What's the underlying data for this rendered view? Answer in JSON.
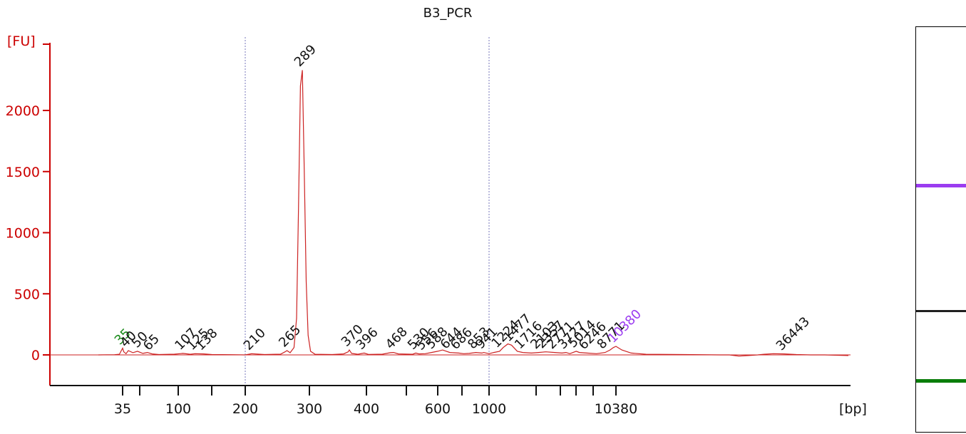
{
  "chart_data": {
    "type": "line",
    "title": "B3_PCR",
    "ylabel": "[FU]",
    "xlabel": "[bp]",
    "ylim": [
      -250,
      2550
    ],
    "y_ticks": [
      0,
      500,
      1000,
      1500,
      2000
    ],
    "x_ticks": [
      {
        "bp": 35,
        "label": "35"
      },
      {
        "bp": 50,
        "label": ""
      },
      {
        "bp": 100,
        "label": "100"
      },
      {
        "bp": 150,
        "label": ""
      },
      {
        "bp": 200,
        "label": "200"
      },
      {
        "bp": 300,
        "label": "300"
      },
      {
        "bp": 400,
        "label": "400"
      },
      {
        "bp": 500,
        "label": ""
      },
      {
        "bp": 600,
        "label": "600"
      },
      {
        "bp": 700,
        "label": ""
      },
      {
        "bp": 1000,
        "label": "1000"
      },
      {
        "bp": 2000,
        "label": ""
      },
      {
        "bp": 3000,
        "label": ""
      },
      {
        "bp": 5000,
        "label": ""
      },
      {
        "bp": 7000,
        "label": ""
      },
      {
        "bp": 10380,
        "label": "10380"
      }
    ],
    "dotted_lines_bp": [
      200,
      1000
    ],
    "trace": [
      [
        20,
        0
      ],
      [
        30,
        2
      ],
      [
        33,
        5
      ],
      [
        34,
        30
      ],
      [
        35,
        55
      ],
      [
        36,
        25
      ],
      [
        38,
        10
      ],
      [
        40,
        35
      ],
      [
        44,
        18
      ],
      [
        48,
        30
      ],
      [
        54,
        12
      ],
      [
        60,
        20
      ],
      [
        66,
        8
      ],
      [
        75,
        3
      ],
      [
        95,
        6
      ],
      [
        107,
        12
      ],
      [
        118,
        5
      ],
      [
        125,
        10
      ],
      [
        138,
        8
      ],
      [
        150,
        3
      ],
      [
        180,
        2
      ],
      [
        200,
        0
      ],
      [
        210,
        10
      ],
      [
        230,
        3
      ],
      [
        255,
        6
      ],
      [
        262,
        25
      ],
      [
        265,
        35
      ],
      [
        270,
        18
      ],
      [
        276,
        60
      ],
      [
        280,
        300
      ],
      [
        283,
        1200
      ],
      [
        286,
        2200
      ],
      [
        289,
        2330
      ],
      [
        292,
        1500
      ],
      [
        295,
        600
      ],
      [
        298,
        160
      ],
      [
        302,
        30
      ],
      [
        310,
        5
      ],
      [
        340,
        3
      ],
      [
        360,
        8
      ],
      [
        368,
        25
      ],
      [
        370,
        40
      ],
      [
        374,
        12
      ],
      [
        385,
        5
      ],
      [
        396,
        15
      ],
      [
        405,
        4
      ],
      [
        440,
        6
      ],
      [
        460,
        18
      ],
      [
        468,
        20
      ],
      [
        480,
        8
      ],
      [
        520,
        5
      ],
      [
        530,
        15
      ],
      [
        540,
        8
      ],
      [
        560,
        10
      ],
      [
        580,
        20
      ],
      [
        600,
        30
      ],
      [
        620,
        40
      ],
      [
        650,
        20
      ],
      [
        686,
        15
      ],
      [
        720,
        10
      ],
      [
        780,
        12
      ],
      [
        853,
        20
      ],
      [
        920,
        15
      ],
      [
        941,
        20
      ],
      [
        1000,
        10
      ],
      [
        1100,
        20
      ],
      [
        1224,
        30
      ],
      [
        1300,
        60
      ],
      [
        1400,
        90
      ],
      [
        1477,
        80
      ],
      [
        1600,
        30
      ],
      [
        1716,
        20
      ],
      [
        1900,
        15
      ],
      [
        2103,
        20
      ],
      [
        2400,
        25
      ],
      [
        2771,
        20
      ],
      [
        3200,
        15
      ],
      [
        3727,
        20
      ],
      [
        4200,
        10
      ],
      [
        5014,
        30
      ],
      [
        5400,
        20
      ],
      [
        6246,
        15
      ],
      [
        7500,
        10
      ],
      [
        8771,
        20
      ],
      [
        9500,
        40
      ],
      [
        10000,
        60
      ],
      [
        10380,
        70
      ],
      [
        10700,
        40
      ],
      [
        11200,
        15
      ],
      [
        12000,
        5
      ],
      [
        14000,
        3
      ],
      [
        16000,
        0
      ],
      [
        19000,
        0
      ],
      [
        22000,
        -10
      ],
      [
        25000,
        -5
      ],
      [
        28000,
        0
      ],
      [
        30000,
        5
      ],
      [
        33000,
        10
      ],
      [
        36443,
        8
      ],
      [
        39000,
        3
      ],
      [
        42000,
        0
      ],
      [
        45000,
        0
      ],
      [
        50000,
        -5
      ]
    ],
    "peak_labels": [
      {
        "bp": 35,
        "label": "35",
        "color": "green"
      },
      {
        "bp": 40,
        "label": "40",
        "color": "black"
      },
      {
        "bp": 50,
        "label": "50",
        "color": "black"
      },
      {
        "bp": 65,
        "label": "65",
        "color": "black"
      },
      {
        "bp": 107,
        "label": "107",
        "color": "black"
      },
      {
        "bp": 125,
        "label": "125",
        "color": "black"
      },
      {
        "bp": 138,
        "label": "138",
        "color": "black"
      },
      {
        "bp": 210,
        "label": "210",
        "color": "black"
      },
      {
        "bp": 265,
        "label": "265",
        "color": "black"
      },
      {
        "bp": 289,
        "label": "289",
        "color": "black"
      },
      {
        "bp": 370,
        "label": "370",
        "color": "black"
      },
      {
        "bp": 396,
        "label": "396",
        "color": "black"
      },
      {
        "bp": 468,
        "label": "468",
        "color": "black"
      },
      {
        "bp": 530,
        "label": "530",
        "color": "black"
      },
      {
        "bp": 556,
        "label": "556",
        "color": "black"
      },
      {
        "bp": 588,
        "label": "588",
        "color": "black"
      },
      {
        "bp": 644,
        "label": "644",
        "color": "black"
      },
      {
        "bp": 686,
        "label": "686",
        "color": "black"
      },
      {
        "bp": 853,
        "label": "853",
        "color": "black"
      },
      {
        "bp": 941,
        "label": "941",
        "color": "black"
      },
      {
        "bp": 1224,
        "label": "1224",
        "color": "black"
      },
      {
        "bp": 1477,
        "label": "1477",
        "color": "black"
      },
      {
        "bp": 1716,
        "label": "1716",
        "color": "black"
      },
      {
        "bp": 2103,
        "label": "2103",
        "color": "black"
      },
      {
        "bp": 2357,
        "label": "2357",
        "color": "black"
      },
      {
        "bp": 2771,
        "label": "2771",
        "color": "black"
      },
      {
        "bp": 3727,
        "label": "3727",
        "color": "black"
      },
      {
        "bp": 5014,
        "label": "5014",
        "color": "black"
      },
      {
        "bp": 6246,
        "label": "6246",
        "color": "black"
      },
      {
        "bp": 8771,
        "label": "8771",
        "color": "black"
      },
      {
        "bp": 10380,
        "label": "10380",
        "color": "purple"
      },
      {
        "bp": 36443,
        "label": "36443",
        "color": "black"
      }
    ]
  },
  "gel": {
    "bands": [
      {
        "name": "upper-marker",
        "color": "#9b3cf0"
      },
      {
        "name": "sample-band",
        "color": "#202020"
      },
      {
        "name": "lower-marker",
        "color": "#0a7d0a"
      }
    ]
  },
  "colors": {
    "axis": "#cc0000",
    "trace": "#cc2222",
    "grid_dotted": "#7777bb",
    "label_black": "#111111",
    "label_green": "#1a8a1a",
    "label_purple": "#9b3cf0"
  }
}
